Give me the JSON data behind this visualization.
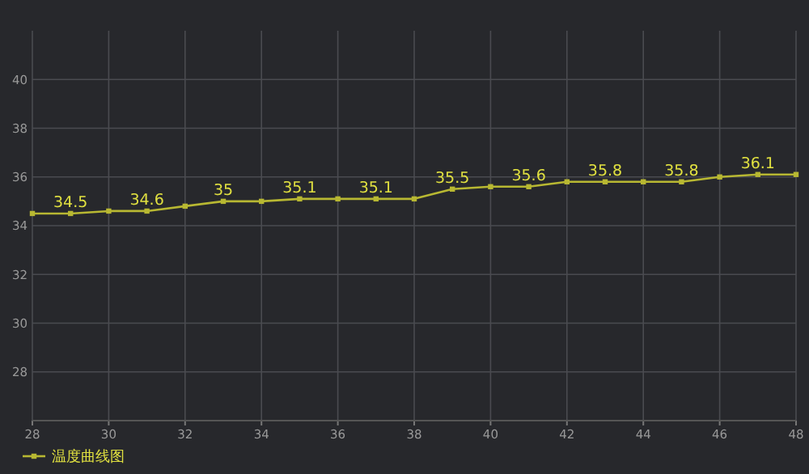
{
  "chart_data": {
    "type": "line",
    "x": [
      28,
      29,
      30,
      31,
      32,
      33,
      34,
      35,
      36,
      37,
      38,
      39,
      40,
      41,
      42,
      43,
      44,
      45,
      46,
      47,
      48
    ],
    "series": [
      {
        "name": "温度曲线图",
        "color": "#b8b832",
        "values": [
          34.5,
          34.5,
          34.6,
          34.6,
          34.8,
          35,
          35,
          35.1,
          35.1,
          35.1,
          35.1,
          35.5,
          35.6,
          35.6,
          35.8,
          35.8,
          35.8,
          35.8,
          36,
          36.1,
          36.1
        ],
        "value_labels": [
          null,
          "34.5",
          null,
          "34.6",
          null,
          "35",
          null,
          "35.1",
          null,
          "35.1",
          null,
          "35.5",
          null,
          "35.6",
          null,
          "35.8",
          null,
          "35.8",
          null,
          "36.1",
          null
        ]
      }
    ],
    "xlim": [
      28,
      48
    ],
    "xticks": [
      28,
      30,
      32,
      34,
      36,
      38,
      40,
      42,
      44,
      46,
      48
    ],
    "ylim": [
      26,
      42
    ],
    "yticks": [
      28,
      30,
      32,
      34,
      36,
      38,
      40
    ],
    "grid": true,
    "legend": "bottom left",
    "marker": "square",
    "line_style": "solid"
  }
}
